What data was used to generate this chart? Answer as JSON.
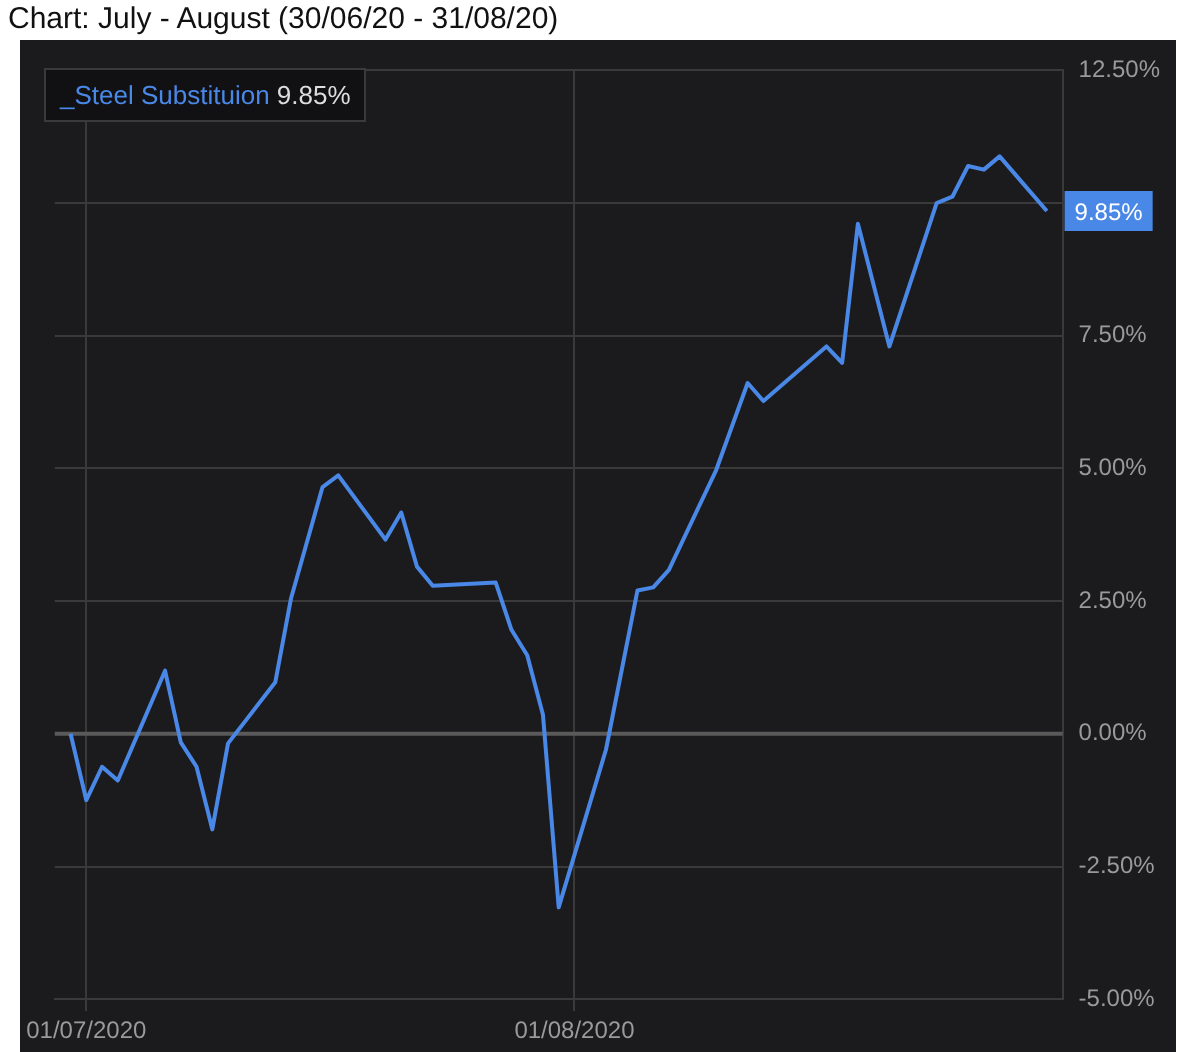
{
  "chart_data": {
    "type": "line",
    "title": "Chart: July - August (30/06/20 - 31/08/20)",
    "x": [
      "2020-06-30",
      "2020-07-01",
      "2020-07-02",
      "2020-07-03",
      "2020-07-06",
      "2020-07-07",
      "2020-07-08",
      "2020-07-09",
      "2020-07-10",
      "2020-07-13",
      "2020-07-14",
      "2020-07-16",
      "2020-07-17",
      "2020-07-20",
      "2020-07-21",
      "2020-07-22",
      "2020-07-23",
      "2020-07-27",
      "2020-07-28",
      "2020-07-29",
      "2020-07-30",
      "2020-07-31",
      "2020-08-03",
      "2020-08-05",
      "2020-08-06",
      "2020-08-07",
      "2020-08-10",
      "2020-08-12",
      "2020-08-13",
      "2020-08-17",
      "2020-08-18",
      "2020-08-19",
      "2020-08-21",
      "2020-08-24",
      "2020-08-25",
      "2020-08-26",
      "2020-08-27",
      "2020-08-28",
      "2020-08-31"
    ],
    "series": [
      {
        "name": "_Steel Substituion",
        "color": "#4a88e8",
        "values": [
          0,
          -1.25,
          -0.62,
          -0.88,
          1.19,
          -0.16,
          -0.62,
          -1.8,
          -0.18,
          0.97,
          2.55,
          4.65,
          4.87,
          3.66,
          4.17,
          3.15,
          2.79,
          2.85,
          1.96,
          1.48,
          0.36,
          -3.27,
          -0.3,
          2.7,
          2.76,
          3.09,
          4.97,
          6.61,
          6.27,
          7.3,
          6.99,
          9.61,
          7.3,
          10.0,
          10.12,
          10.7,
          10.63,
          10.88,
          9.85
        ],
        "value_labels": [
          null,
          null,
          null,
          null,
          null,
          null,
          null,
          null,
          null,
          null,
          null,
          null,
          null,
          null,
          null,
          null,
          null,
          null,
          null,
          null,
          null,
          null,
          null,
          null,
          null,
          null,
          null,
          null,
          null,
          null,
          null,
          null,
          null,
          null,
          null,
          null,
          null,
          null,
          "9.85%"
        ]
      }
    ],
    "xlim": [
      "2020-06-29",
      "2020-09-01"
    ],
    "xticks": [
      {
        "value": "2020-07-01",
        "label": "01/07/2020"
      },
      {
        "value": "2020-08-01",
        "label": "01/08/2020"
      }
    ],
    "ylim": [
      -5,
      12.5
    ],
    "yticks": [
      {
        "value": -5,
        "label": "-5.00%"
      },
      {
        "value": -2.5,
        "label": "-2.50%"
      },
      {
        "value": 0,
        "label": "0.00%"
      },
      {
        "value": 2.5,
        "label": "2.50%"
      },
      {
        "value": 5,
        "label": "5.00%"
      },
      {
        "value": 7.5,
        "label": "7.50%"
      },
      {
        "value": 10,
        "label": null
      },
      {
        "value": 12.5,
        "label": "12.50%"
      }
    ],
    "grid": true,
    "legend": "top left",
    "marker": "none",
    "line_style": "solid"
  }
}
